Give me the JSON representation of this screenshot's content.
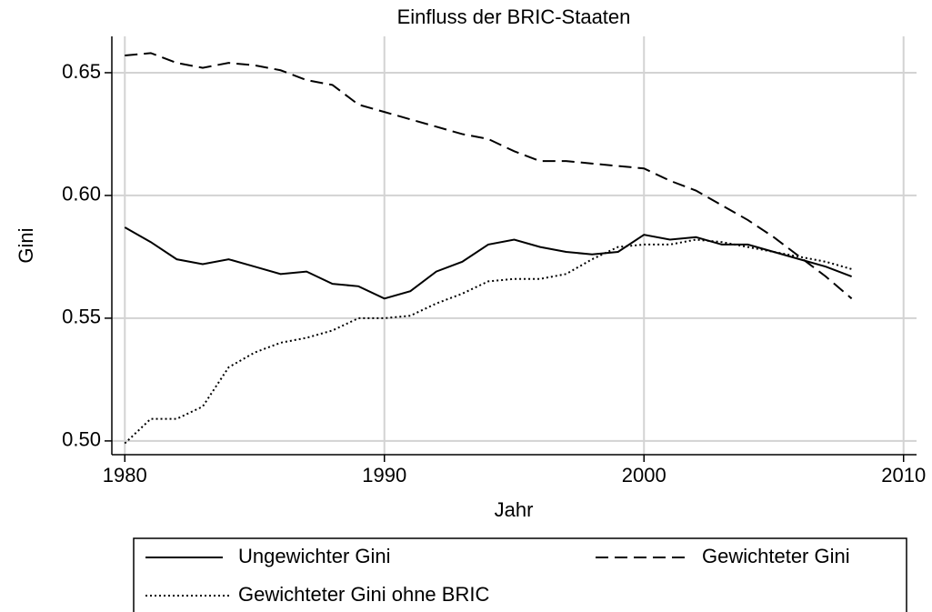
{
  "chart_data": {
    "type": "line",
    "title": "Einfluss der BRIC-Staaten",
    "xlabel": "Jahr",
    "ylabel": "Gini",
    "x": [
      1980,
      1981,
      1982,
      1983,
      1984,
      1985,
      1986,
      1987,
      1988,
      1989,
      1990,
      1991,
      1992,
      1993,
      1994,
      1995,
      1996,
      1997,
      1998,
      1999,
      2000,
      2001,
      2002,
      2003,
      2004,
      2005,
      2006,
      2007,
      2008
    ],
    "series": [
      {
        "name": "Ungewichter Gini",
        "color": "#000000",
        "style": "solid",
        "values": [
          0.587,
          0.581,
          0.574,
          0.572,
          0.574,
          0.571,
          0.568,
          0.569,
          0.564,
          0.563,
          0.558,
          0.561,
          0.569,
          0.573,
          0.58,
          0.582,
          0.579,
          0.577,
          0.576,
          0.577,
          0.584,
          0.582,
          0.583,
          0.58,
          0.58,
          0.577,
          0.574,
          0.571,
          0.567
        ]
      },
      {
        "name": "Gewichteter Gini",
        "color": "#000000",
        "style": "dashed",
        "values": [
          0.657,
          0.658,
          0.654,
          0.652,
          0.654,
          0.653,
          0.651,
          0.647,
          0.645,
          0.637,
          0.634,
          0.631,
          0.628,
          0.625,
          0.623,
          0.618,
          0.614,
          0.614,
          0.613,
          0.612,
          0.611,
          0.606,
          0.602,
          0.596,
          0.59,
          0.583,
          0.575,
          0.567,
          0.558
        ]
      },
      {
        "name": "Gewichteter Gini ohne BRIC",
        "color": "#000000",
        "style": "dotted",
        "values": [
          0.499,
          0.509,
          0.509,
          0.514,
          0.53,
          0.536,
          0.54,
          0.542,
          0.545,
          0.55,
          0.55,
          0.551,
          0.556,
          0.56,
          0.565,
          0.566,
          0.566,
          0.568,
          0.574,
          0.579,
          0.58,
          0.58,
          0.582,
          0.581,
          0.579,
          0.577,
          0.575,
          0.573,
          0.57
        ]
      }
    ],
    "xlim": [
      1979.5,
      2010.5
    ],
    "xticks": [
      1980,
      1990,
      2000,
      2010
    ],
    "ylim": [
      0.4944,
      0.6648
    ],
    "yticks": [
      {
        "value": 0.5,
        "label": "0.50"
      },
      0.55,
      {
        "value": 0.6,
        "label": "0.60"
      },
      0.65
    ],
    "grid": true,
    "legend": "bottom"
  }
}
